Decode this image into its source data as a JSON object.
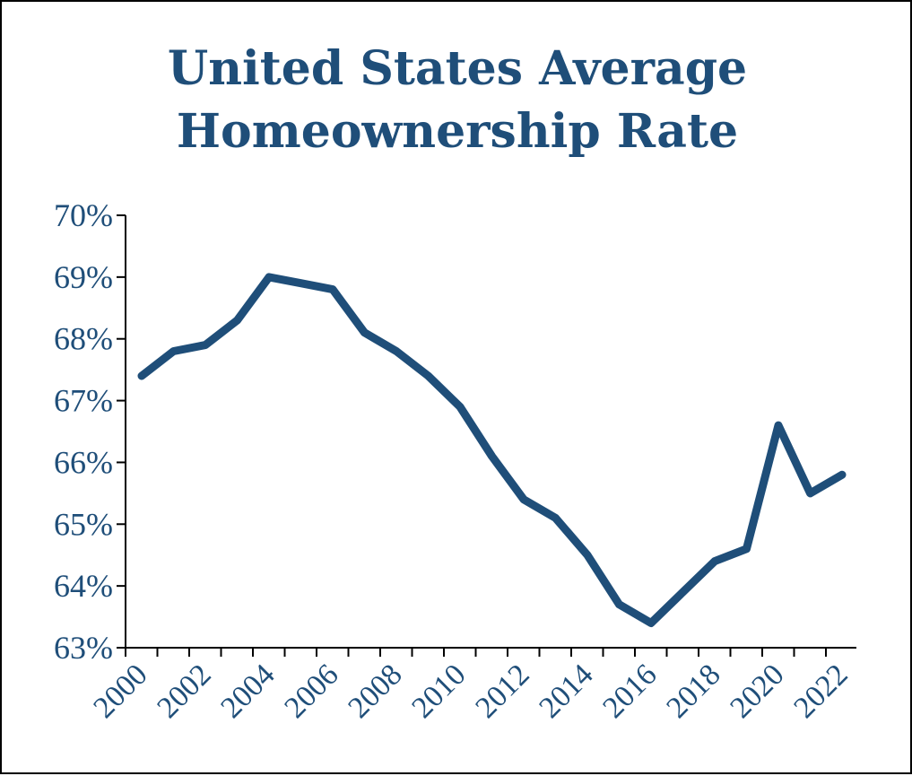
{
  "chart_data": {
    "type": "line",
    "title": [
      "United States Average",
      "Homeownership Rate"
    ],
    "xlabel": "",
    "ylabel": "",
    "x": [
      2000,
      2001,
      2002,
      2003,
      2004,
      2005,
      2006,
      2007,
      2008,
      2009,
      2010,
      2011,
      2012,
      2013,
      2014,
      2015,
      2016,
      2017,
      2018,
      2019,
      2020,
      2021,
      2022
    ],
    "values": [
      67.4,
      67.8,
      67.9,
      68.3,
      69.0,
      68.9,
      68.8,
      68.1,
      67.8,
      67.4,
      66.9,
      66.1,
      65.4,
      65.1,
      64.5,
      63.7,
      63.4,
      63.9,
      64.4,
      64.6,
      66.6,
      65.5,
      65.8
    ],
    "ylim": [
      63,
      70
    ],
    "y_ticks": [
      "63%",
      "64%",
      "65%",
      "66%",
      "67%",
      "68%",
      "69%",
      "70%"
    ],
    "x_tick_labels": [
      "2000",
      "2002",
      "2004",
      "2006",
      "2008",
      "2010",
      "2012",
      "2014",
      "2016",
      "2018",
      "2020",
      "2022"
    ],
    "grid": false,
    "legend": "none",
    "colors": {
      "line": "#1f4e79",
      "text": "#1f4e79",
      "axis": "#000000"
    }
  }
}
